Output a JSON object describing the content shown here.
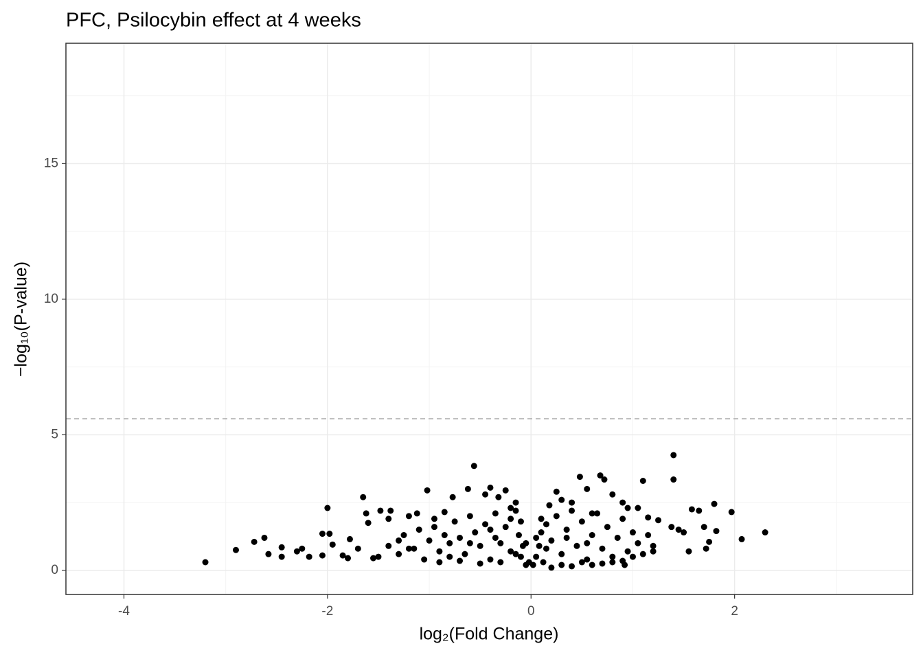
{
  "chart_data": {
    "type": "scatter",
    "title": "PFC, Psilocybin effect at 4 weeks",
    "x_label": "log₂(Fold Change)",
    "y_label": "−log₁₀(P-value)",
    "color": "#000000",
    "x": [
      -3.2,
      -2.9,
      -2.72,
      -2.62,
      -2.58,
      -2.45,
      -2.45,
      -2.3,
      -2.25,
      -2.18,
      -2.05,
      -2.05,
      -2.0,
      -1.98,
      -1.95,
      -1.85,
      -1.8,
      -1.78,
      -1.7,
      -1.65,
      -1.62,
      -1.6,
      -1.55,
      -1.48,
      -1.4,
      -1.38,
      -1.3,
      -1.2,
      -1.12,
      -1.02,
      -0.95,
      -0.85,
      -0.77,
      -0.62,
      -0.56,
      -0.45,
      -0.4,
      -0.32,
      -0.25,
      -0.2,
      -0.15,
      -0.1,
      -0.05,
      -0.02,
      -1.5,
      -1.4,
      -1.3,
      -1.25,
      -1.15,
      -1.1,
      -1.05,
      -1.0,
      -0.95,
      -0.9,
      -0.85,
      -0.8,
      -0.75,
      -0.7,
      -0.65,
      -0.6,
      -0.55,
      -0.5,
      -0.45,
      -0.4,
      -0.35,
      -0.3,
      -0.25,
      -0.2,
      -0.15,
      -0.12,
      -0.1,
      -0.08,
      -0.05,
      -0.9,
      -0.7,
      -0.5,
      -0.3,
      -0.6,
      -0.4,
      -0.2,
      -0.8,
      -1.2,
      -0.35,
      -0.15,
      0.02,
      0.05,
      0.1,
      0.18,
      0.25,
      0.3,
      0.4,
      0.48,
      0.55,
      0.6,
      0.68,
      0.72,
      0.8,
      0.9,
      0.95,
      1.05,
      1.1,
      1.15,
      1.2,
      1.25,
      1.38,
      1.4,
      1.4,
      1.45,
      1.5,
      1.55,
      1.58,
      1.65,
      1.7,
      1.72,
      1.75,
      1.8,
      1.82,
      1.97,
      2.07,
      2.3,
      0.05,
      0.08,
      0.1,
      0.12,
      0.15,
      0.2,
      0.25,
      0.3,
      0.35,
      0.4,
      0.45,
      0.5,
      0.55,
      0.6,
      0.65,
      0.7,
      0.75,
      0.8,
      0.85,
      0.9,
      0.95,
      1.0,
      1.05,
      1.1,
      1.15,
      1.2,
      0.3,
      0.5,
      0.7,
      0.9,
      0.2,
      0.4,
      0.6,
      0.8,
      1.0,
      0.15,
      0.35,
      0.55,
      0.92
    ],
    "values": [
      0.3,
      0.75,
      1.05,
      1.2,
      0.6,
      0.85,
      0.5,
      0.7,
      0.8,
      0.5,
      0.55,
      1.35,
      2.3,
      1.35,
      0.95,
      0.55,
      0.45,
      1.15,
      0.8,
      2.7,
      2.1,
      1.75,
      0.45,
      2.2,
      1.9,
      2.2,
      1.1,
      2.0,
      2.1,
      2.95,
      1.9,
      2.15,
      2.7,
      3.0,
      3.85,
      2.8,
      3.05,
      2.7,
      2.95,
      2.3,
      2.5,
      1.8,
      1.0,
      0.3,
      0.5,
      0.9,
      0.6,
      1.3,
      0.8,
      1.5,
      0.4,
      1.1,
      1.6,
      0.7,
      1.3,
      0.5,
      1.8,
      1.2,
      0.6,
      2.0,
      1.4,
      0.9,
      1.7,
      0.4,
      2.1,
      1.0,
      1.6,
      0.7,
      2.2,
      1.3,
      0.5,
      0.9,
      0.2,
      0.3,
      0.35,
      0.25,
      0.3,
      1.0,
      1.5,
      1.9,
      1.0,
      0.8,
      1.2,
      0.6,
      0.2,
      1.2,
      1.9,
      2.4,
      2.9,
      2.6,
      2.5,
      3.45,
      3.0,
      2.1,
      3.5,
      3.35,
      2.8,
      2.5,
      2.3,
      2.3,
      3.3,
      1.95,
      0.7,
      1.85,
      1.6,
      4.25,
      3.35,
      1.5,
      1.4,
      0.7,
      2.25,
      2.2,
      1.6,
      0.8,
      1.05,
      2.45,
      1.45,
      2.15,
      1.15,
      1.4,
      0.5,
      0.9,
      1.4,
      0.3,
      1.7,
      1.1,
      2.0,
      0.6,
      1.5,
      2.2,
      0.9,
      1.8,
      0.4,
      1.3,
      2.1,
      0.8,
      1.6,
      0.5,
      1.2,
      1.9,
      0.7,
      1.4,
      1.0,
      0.6,
      1.3,
      0.9,
      0.2,
      0.3,
      0.25,
      0.35,
      0.1,
      0.15,
      0.2,
      0.3,
      0.5,
      0.8,
      1.2,
      1.0,
      0.2
    ],
    "threshold": 5.59,
    "xlim": [
      -4.57,
      3.75
    ],
    "ylim": [
      -0.89,
      19.44
    ],
    "xticks": [
      -4,
      -2,
      0,
      2
    ],
    "yticks": [
      0,
      5,
      10,
      15
    ],
    "grid": true
  }
}
